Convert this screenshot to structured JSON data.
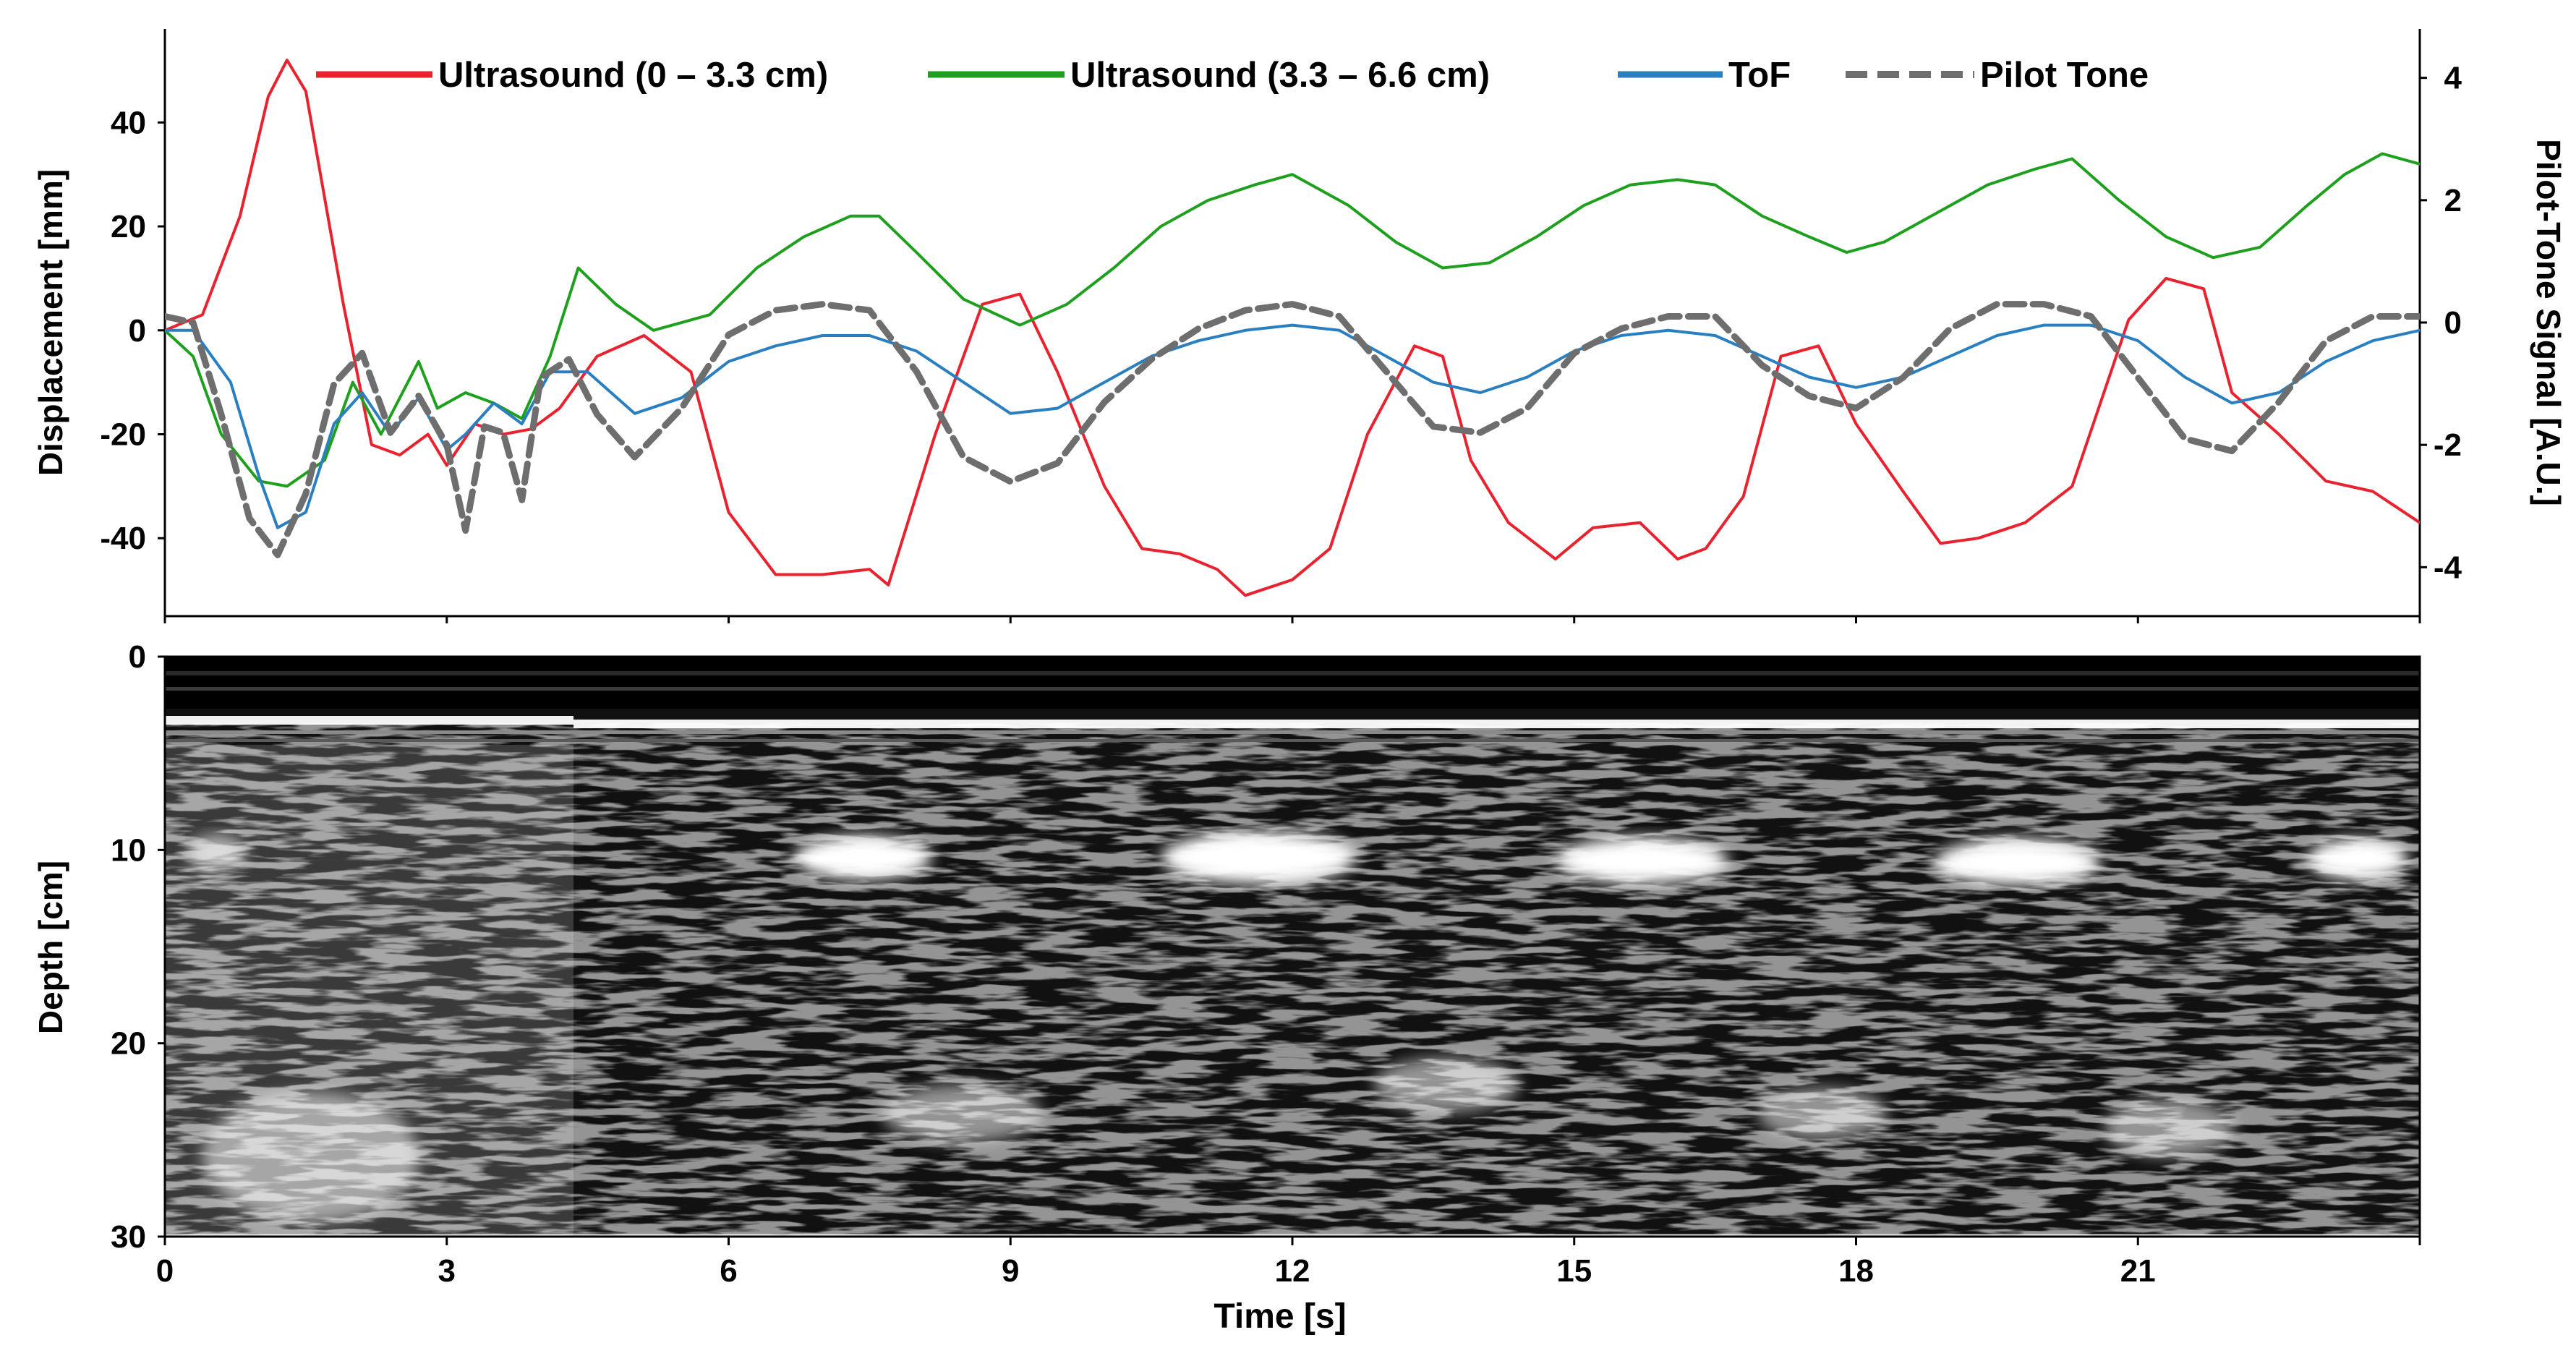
{
  "chart_data": [
    {
      "type": "line",
      "xlabel": "",
      "ylabel": "Displacement [mm]",
      "ylabel_right": "Pilot-Tone Signal [A.U.]",
      "xlim": [
        0,
        24
      ],
      "ylim": [
        -55,
        58
      ],
      "ylim_right": [
        -4.8,
        4.8
      ],
      "yticks": [
        40,
        20,
        0,
        -20,
        -40
      ],
      "ytick_labels": [
        "40",
        "20",
        "0",
        "-20",
        "-40"
      ],
      "yticks_right": [
        4,
        2,
        0,
        -2,
        -4
      ],
      "ytick_labels_right": [
        "4",
        "2",
        "0",
        "-2",
        "-4"
      ],
      "grid": false,
      "legend_position": "top",
      "colors": {
        "ultrasound_shallow": "#e8222e",
        "ultrasound_deep": "#1ea01e",
        "tof": "#2a7fc0",
        "pilot_tone": "#6e6e6e"
      },
      "series": [
        {
          "name": "Ultrasound (0 – 3.3 cm)",
          "axis": "left",
          "style": "solid",
          "color": "#e8222e",
          "x": [
            0,
            0.4,
            0.8,
            1.1,
            1.3,
            1.5,
            1.9,
            2.2,
            2.5,
            2.8,
            3.0,
            3.3,
            3.6,
            3.9,
            4.2,
            4.6,
            5.1,
            5.6,
            6.0,
            6.5,
            7.0,
            7.5,
            7.7,
            8.2,
            8.7,
            9.1,
            9.5,
            10.0,
            10.4,
            10.8,
            11.2,
            11.5,
            12.0,
            12.4,
            12.8,
            13.3,
            13.6,
            13.9,
            14.3,
            14.8,
            15.2,
            15.7,
            16.1,
            16.4,
            16.8,
            17.2,
            17.6,
            18.0,
            18.5,
            18.9,
            19.3,
            19.8,
            20.3,
            20.9,
            21.3,
            21.7,
            22.0,
            22.5,
            23.0,
            23.5,
            24.0
          ],
          "y": [
            0,
            3,
            22,
            45,
            52,
            46,
            5,
            -22,
            -24,
            -20,
            -26,
            -18,
            -20,
            -19,
            -15,
            -5,
            -1,
            -8,
            -35,
            -47,
            -47,
            -46,
            -49,
            -20,
            5,
            7,
            -8,
            -30,
            -42,
            -43,
            -46,
            -51,
            -48,
            -42,
            -20,
            -3,
            -5,
            -25,
            -37,
            -44,
            -38,
            -37,
            -44,
            -42,
            -32,
            -5,
            -3,
            -18,
            -31,
            -41,
            -40,
            -37,
            -30,
            2,
            10,
            8,
            -12,
            -20,
            -29,
            -31,
            -37
          ]
        },
        {
          "name": "Ultrasound (3.3 – 6.6 cm)",
          "axis": "left",
          "style": "solid",
          "color": "#1ea01e",
          "x": [
            0,
            0.3,
            0.6,
            1.0,
            1.3,
            1.7,
            2.0,
            2.3,
            2.7,
            2.9,
            3.2,
            3.5,
            3.8,
            4.1,
            4.4,
            4.8,
            5.2,
            5.8,
            6.3,
            6.8,
            7.3,
            7.6,
            8.0,
            8.5,
            9.1,
            9.6,
            10.1,
            10.6,
            11.1,
            11.6,
            12.0,
            12.6,
            13.1,
            13.6,
            14.1,
            14.6,
            15.1,
            15.6,
            16.1,
            16.5,
            17.0,
            17.5,
            17.9,
            18.3,
            18.8,
            19.4,
            19.9,
            20.3,
            20.8,
            21.3,
            21.8,
            22.3,
            22.8,
            23.2,
            23.6,
            24.0
          ],
          "y": [
            0,
            -5,
            -20,
            -29,
            -30,
            -25,
            -10,
            -20,
            -6,
            -15,
            -12,
            -14,
            -17,
            -5,
            12,
            5,
            0,
            3,
            12,
            18,
            22,
            22,
            15,
            6,
            1,
            5,
            12,
            20,
            25,
            28,
            30,
            24,
            17,
            12,
            13,
            18,
            24,
            28,
            29,
            28,
            22,
            18,
            15,
            17,
            22,
            28,
            31,
            33,
            25,
            18,
            14,
            16,
            24,
            30,
            34,
            32
          ]
        },
        {
          "name": "ToF",
          "axis": "left",
          "style": "solid",
          "color": "#2a7fc0",
          "x": [
            0,
            0.3,
            0.7,
            1.0,
            1.2,
            1.5,
            1.8,
            2.1,
            2.4,
            2.7,
            3.0,
            3.2,
            3.5,
            3.8,
            4.1,
            4.5,
            5.0,
            5.5,
            6.0,
            6.5,
            7.0,
            7.5,
            8.0,
            8.5,
            9.0,
            9.5,
            10.0,
            10.5,
            11.0,
            11.5,
            12.0,
            12.5,
            13.0,
            13.5,
            14.0,
            14.5,
            15.0,
            15.5,
            16.0,
            16.5,
            17.0,
            17.5,
            18.0,
            18.5,
            19.0,
            19.5,
            20.0,
            20.5,
            21.0,
            21.5,
            22.0,
            22.5,
            23.0,
            23.5,
            24.0
          ],
          "y": [
            0,
            0,
            -10,
            -28,
            -38,
            -35,
            -18,
            -12,
            -20,
            -13,
            -23,
            -20,
            -14,
            -18,
            -8,
            -8,
            -16,
            -13,
            -6,
            -3,
            -1,
            -1,
            -4,
            -10,
            -16,
            -15,
            -10,
            -5,
            -2,
            0,
            1,
            0,
            -5,
            -10,
            -12,
            -9,
            -4,
            -1,
            0,
            -1,
            -5,
            -9,
            -11,
            -9,
            -5,
            -1,
            1,
            1,
            -2,
            -9,
            -14,
            -12,
            -6,
            -2,
            0
          ]
        },
        {
          "name": "Pilot Tone",
          "axis": "right",
          "style": "dashed",
          "color": "#6e6e6e",
          "x": [
            0,
            0.3,
            0.6,
            0.9,
            1.2,
            1.5,
            1.8,
            2.1,
            2.4,
            2.7,
            3.0,
            3.2,
            3.4,
            3.6,
            3.8,
            4.0,
            4.3,
            4.6,
            5.0,
            5.5,
            6.0,
            6.5,
            7.0,
            7.5,
            8.0,
            8.5,
            9.0,
            9.5,
            10.0,
            10.5,
            11.0,
            11.5,
            12.0,
            12.5,
            13.0,
            13.5,
            14.0,
            14.5,
            15.0,
            15.5,
            16.0,
            16.5,
            17.0,
            17.5,
            18.0,
            18.5,
            19.0,
            19.5,
            20.0,
            20.5,
            21.0,
            21.5,
            22.0,
            22.5,
            23.0,
            23.5,
            24.0
          ],
          "y": [
            0.1,
            0,
            -1.5,
            -3.2,
            -3.8,
            -2.8,
            -1.0,
            -0.5,
            -1.8,
            -1.2,
            -2.0,
            -3.4,
            -1.7,
            -1.8,
            -2.9,
            -0.9,
            -0.6,
            -1.5,
            -2.2,
            -1.4,
            -0.2,
            0.2,
            0.3,
            0.2,
            -0.8,
            -2.2,
            -2.6,
            -2.3,
            -1.3,
            -0.6,
            -0.1,
            0.2,
            0.3,
            0.1,
            -0.8,
            -1.7,
            -1.8,
            -1.4,
            -0.5,
            -0.1,
            0.1,
            0.1,
            -0.7,
            -1.2,
            -1.4,
            -0.9,
            -0.1,
            0.3,
            0.3,
            0.1,
            -0.9,
            -1.9,
            -2.1,
            -1.3,
            -0.3,
            0.1,
            0.1
          ]
        }
      ]
    },
    {
      "type": "heatmap",
      "title": "",
      "xlabel": "Time [s]",
      "ylabel": "Depth [cm]",
      "xlim": [
        0,
        24
      ],
      "ylim": [
        0,
        30
      ],
      "xticks": [
        0,
        3,
        6,
        9,
        12,
        15,
        18,
        21
      ],
      "xtick_labels": [
        "0",
        "3",
        "6",
        "9",
        "12",
        "15",
        "18",
        "21"
      ],
      "yticks": [
        0,
        10,
        20,
        30
      ],
      "ytick_labels": [
        "0",
        "10",
        "20",
        "30"
      ],
      "colormap": "grayscale",
      "features": {
        "surface_band_depth_cm": 3,
        "bright_blobs_depth_cm": 10.5,
        "bright_blob_times_s": [
          7.5,
          12.0,
          16.0,
          20.1,
          23.5
        ],
        "lower_bright_regions_depth_cm": 23
      }
    }
  ]
}
